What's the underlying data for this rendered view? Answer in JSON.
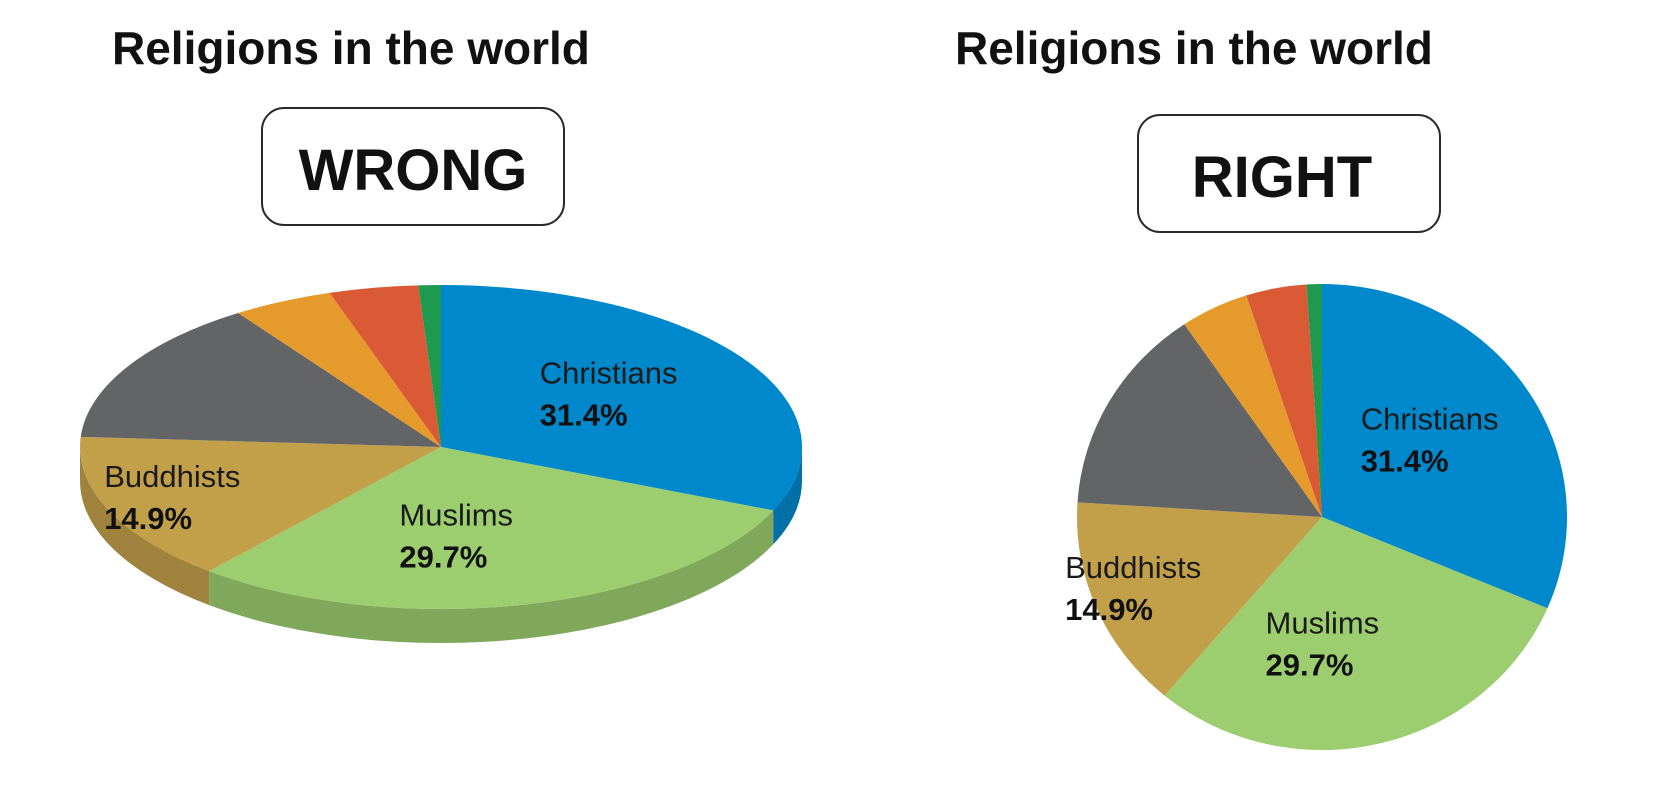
{
  "chart_data": [
    {
      "type": "pie",
      "style": "3d-tilted",
      "title": "Religions in the world",
      "badge": "WRONG",
      "slices": [
        {
          "name": "Christians",
          "value": 31.4,
          "color": "#0088cc"
        },
        {
          "name": "Muslims",
          "value": 29.7,
          "color": "#9ccd6e"
        },
        {
          "name": "Buddhists",
          "value": 14.9,
          "color": "#c2a04a"
        },
        {
          "name": "",
          "value": 14.5,
          "color": "#636466"
        },
        {
          "name": "",
          "value": 4.5,
          "color": "#e59b2b"
        },
        {
          "name": "",
          "value": 4.0,
          "color": "#db5a36"
        },
        {
          "name": "",
          "value": 1.0,
          "color": "#1d9a4f"
        }
      ]
    },
    {
      "type": "pie",
      "style": "flat",
      "title": "Religions in the world",
      "badge": "RIGHT",
      "slices": [
        {
          "name": "Christians",
          "value": 31.4,
          "color": "#0088cc"
        },
        {
          "name": "Muslims",
          "value": 29.7,
          "color": "#9ccd6e"
        },
        {
          "name": "Buddhists",
          "value": 14.9,
          "color": "#c2a04a"
        },
        {
          "name": "",
          "value": 14.5,
          "color": "#636466"
        },
        {
          "name": "",
          "value": 4.5,
          "color": "#e59b2b"
        },
        {
          "name": "",
          "value": 4.0,
          "color": "#db5a36"
        },
        {
          "name": "",
          "value": 1.0,
          "color": "#1d9a4f"
        }
      ]
    }
  ]
}
